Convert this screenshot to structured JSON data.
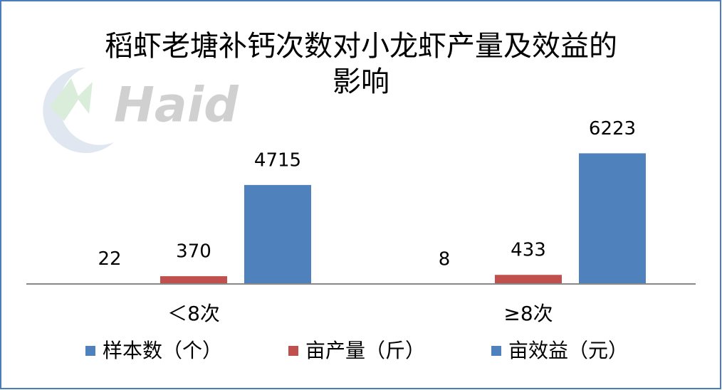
{
  "chart_data": {
    "type": "bar",
    "title": "稻虾老塘补钙次数对小龙虾产量及效益的影响",
    "watermark": "Haid",
    "categories": [
      "＜8次",
      "≥8次"
    ],
    "series": [
      {
        "name": "样本数（个）",
        "color": "#4f81bd",
        "values": [
          22,
          8
        ]
      },
      {
        "name": "亩产量（斤）",
        "color": "#c0504d",
        "values": [
          370,
          433
        ]
      },
      {
        "name": "亩效益（元）",
        "color": "#4f81bd",
        "values": [
          4715,
          6223
        ]
      }
    ],
    "ylim": [
      0,
      7000
    ],
    "legend": "bottom"
  }
}
